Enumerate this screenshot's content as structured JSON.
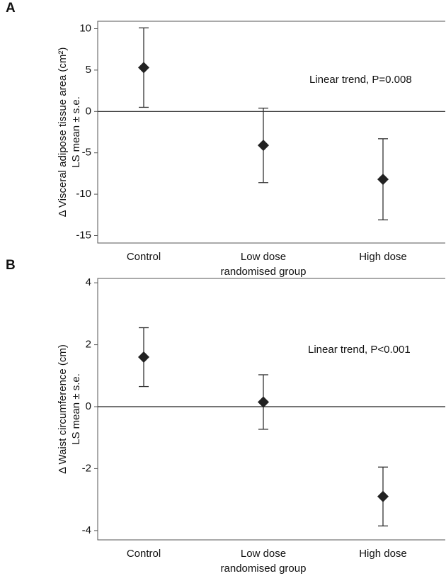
{
  "chart_data": [
    {
      "type": "errorbar",
      "panel_label": "A",
      "ylabel": "Δ Visceral adipose tissue area (cm²)",
      "ylabel2": "LS mean ± s.e.",
      "xlabel": "randomised group",
      "annotation": "Linear trend, P=0.008",
      "categories": [
        "Control",
        "Low dose",
        "High dose"
      ],
      "values": [
        5.3,
        -4.1,
        -8.2
      ],
      "errors": [
        4.8,
        4.5,
        4.9
      ],
      "color": "#222222",
      "ylim": [
        -15.9,
        10.9
      ],
      "yticks": [
        -15,
        -10,
        -5,
        0,
        5,
        10
      ]
    },
    {
      "type": "errorbar",
      "panel_label": "B",
      "ylabel": "Δ Waist circumference (cm)",
      "ylabel2": "LS mean ± s.e.",
      "xlabel": "randomised group",
      "annotation": "Linear trend, P<0.001",
      "categories": [
        "Control",
        "Low dose",
        "High dose"
      ],
      "values": [
        1.6,
        0.15,
        -2.9
      ],
      "errors": [
        0.95,
        0.88,
        0.95
      ],
      "color": "#222222",
      "ylim": [
        -4.3,
        4.14
      ],
      "yticks": [
        -4,
        -2,
        0,
        2,
        4
      ]
    }
  ]
}
